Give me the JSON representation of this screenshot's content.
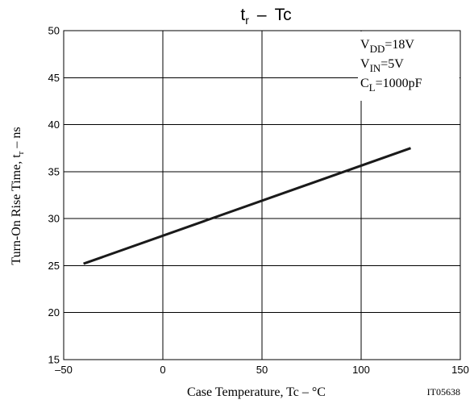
{
  "chart_data": {
    "type": "line",
    "title": {
      "main": "t",
      "sub": "r",
      "sep": "–",
      "tail": "Tc"
    },
    "xlabel": "Case Temperature, Tc  –  °C",
    "ylabel": {
      "main": "Turn-On Rise Time, t",
      "sub": "r",
      "tail": " –  ns"
    },
    "xlim": [
      -50,
      150
    ],
    "ylim": [
      15,
      50
    ],
    "x_ticks": [
      -50,
      0,
      50,
      100,
      150
    ],
    "x_tick_labels": [
      "–50",
      "0",
      "50",
      "100",
      "150"
    ],
    "y_ticks": [
      15,
      20,
      25,
      30,
      35,
      40,
      45,
      50
    ],
    "y_tick_labels": [
      "15",
      "20",
      "25",
      "30",
      "35",
      "40",
      "45",
      "50"
    ],
    "grid": true,
    "series": [
      {
        "x": [
          -40,
          125
        ],
        "y": [
          25.2,
          37.5
        ]
      }
    ],
    "conditions": [
      {
        "main": "V",
        "sub": "DD",
        "rest": "=18V"
      },
      {
        "main": "V",
        "sub": "IN",
        "rest": "=5V"
      },
      {
        "main": "C",
        "sub": "L",
        "rest": "=1000pF"
      }
    ],
    "figure_id": "IT05638",
    "line_color": "#1a1a1a"
  }
}
